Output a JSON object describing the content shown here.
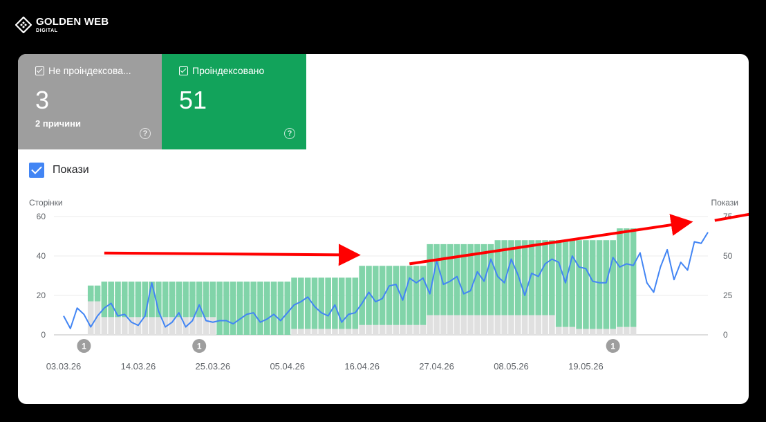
{
  "brand": {
    "name": "GOLDEN WEB",
    "sub": "DIGITAL"
  },
  "tiles": [
    {
      "label": "Не проіндексова...",
      "value": "3",
      "sub": "2 причини",
      "color": "#9e9e9e"
    },
    {
      "label": "Проіндексовано",
      "value": "51",
      "sub": "",
      "color": "#12a35b"
    }
  ],
  "legend": {
    "label": "Покази",
    "checked": true,
    "color": "#4285f4"
  },
  "chart_data": {
    "type": "bar",
    "stacked": true,
    "dual_axis": true,
    "left_axis": {
      "title": "Сторінки",
      "ticks": [
        0,
        20,
        40,
        60
      ],
      "ylim": [
        0,
        60
      ]
    },
    "right_axis": {
      "title": "Покази",
      "ticks": [
        0,
        25,
        50,
        75
      ],
      "ylim": [
        0,
        75
      ]
    },
    "x_tick_labels": [
      "03.03.26",
      "14.03.26",
      "25.03.26",
      "05.04.26",
      "16.04.26",
      "27.04.26",
      "08.05.26",
      "19.05.26"
    ],
    "annotations": [
      {
        "day_index": 3,
        "label": "1"
      },
      {
        "day_index": 20,
        "label": "1"
      },
      {
        "day_index": 81,
        "label": "1"
      }
    ],
    "series": [
      {
        "role": "not_indexed",
        "type": "bar",
        "axis": "left",
        "color": "#e0e0e0",
        "segments": [
          {
            "from": 0,
            "to": 3,
            "value": 0
          },
          {
            "from": 4,
            "to": 5,
            "value": 17
          },
          {
            "from": 6,
            "to": 11,
            "value": 9
          },
          {
            "from": 12,
            "to": 19,
            "value": 9
          },
          {
            "from": 20,
            "to": 22,
            "value": 9
          },
          {
            "from": 23,
            "to": 33,
            "value": 0
          },
          {
            "from": 34,
            "to": 43,
            "value": 3
          },
          {
            "from": 44,
            "to": 53,
            "value": 5
          },
          {
            "from": 54,
            "to": 63,
            "value": 10
          },
          {
            "from": 64,
            "to": 66,
            "value": 10
          },
          {
            "from": 67,
            "to": 72,
            "value": 10
          },
          {
            "from": 73,
            "to": 75,
            "value": 4
          },
          {
            "from": 76,
            "to": 81,
            "value": 3
          },
          {
            "from": 82,
            "to": 84,
            "value": 4
          }
        ]
      },
      {
        "role": "indexed",
        "type": "bar",
        "axis": "left",
        "color": "#81d4a9",
        "segments": [
          {
            "from": 0,
            "to": 3,
            "value": 0
          },
          {
            "from": 4,
            "to": 5,
            "value": 8
          },
          {
            "from": 6,
            "to": 11,
            "value": 18
          },
          {
            "from": 12,
            "to": 19,
            "value": 18
          },
          {
            "from": 20,
            "to": 22,
            "value": 18
          },
          {
            "from": 23,
            "to": 33,
            "value": 27
          },
          {
            "from": 34,
            "to": 43,
            "value": 26
          },
          {
            "from": 44,
            "to": 53,
            "value": 30
          },
          {
            "from": 54,
            "to": 63,
            "value": 36
          },
          {
            "from": 64,
            "to": 66,
            "value": 38
          },
          {
            "from": 67,
            "to": 72,
            "value": 38
          },
          {
            "from": 73,
            "to": 75,
            "value": 44
          },
          {
            "from": 76,
            "to": 81,
            "value": 45
          },
          {
            "from": 82,
            "to": 84,
            "value": 50
          }
        ]
      },
      {
        "name": "Покази",
        "type": "line",
        "axis": "right",
        "color": "#4285f4",
        "values": [
          12,
          4,
          17,
          13,
          5,
          12,
          17,
          20,
          12,
          13,
          8,
          6,
          12,
          33,
          15,
          5,
          8,
          14,
          5,
          9,
          19,
          9,
          8,
          9,
          9,
          7,
          10,
          13,
          14,
          8,
          10,
          13,
          9,
          14,
          19,
          21,
          24,
          18,
          14,
          12,
          19,
          8,
          13,
          14,
          20,
          27,
          21,
          23,
          31,
          32,
          22,
          36,
          33,
          36,
          26,
          47,
          32,
          34,
          37,
          26,
          28,
          40,
          34,
          48,
          37,
          33,
          48,
          38,
          25,
          39,
          37,
          45,
          48,
          46,
          33,
          50,
          43,
          42,
          34,
          33,
          33,
          49,
          43,
          45,
          44,
          52,
          33,
          27,
          43,
          54,
          35,
          46,
          41,
          59,
          58,
          65
        ]
      }
    ],
    "overlay_arrows": [
      {
        "from": [
          6,
          41.5
        ],
        "to": [
          43,
          40.5
        ],
        "color": "#ff0000"
      },
      {
        "from": [
          51,
          36
        ],
        "to": [
          92,
          57
        ],
        "color": "#ff0000"
      },
      {
        "from": [
          96,
          58
        ],
        "to": [
          130,
          79
        ],
        "color": "#ff0000"
      }
    ]
  }
}
